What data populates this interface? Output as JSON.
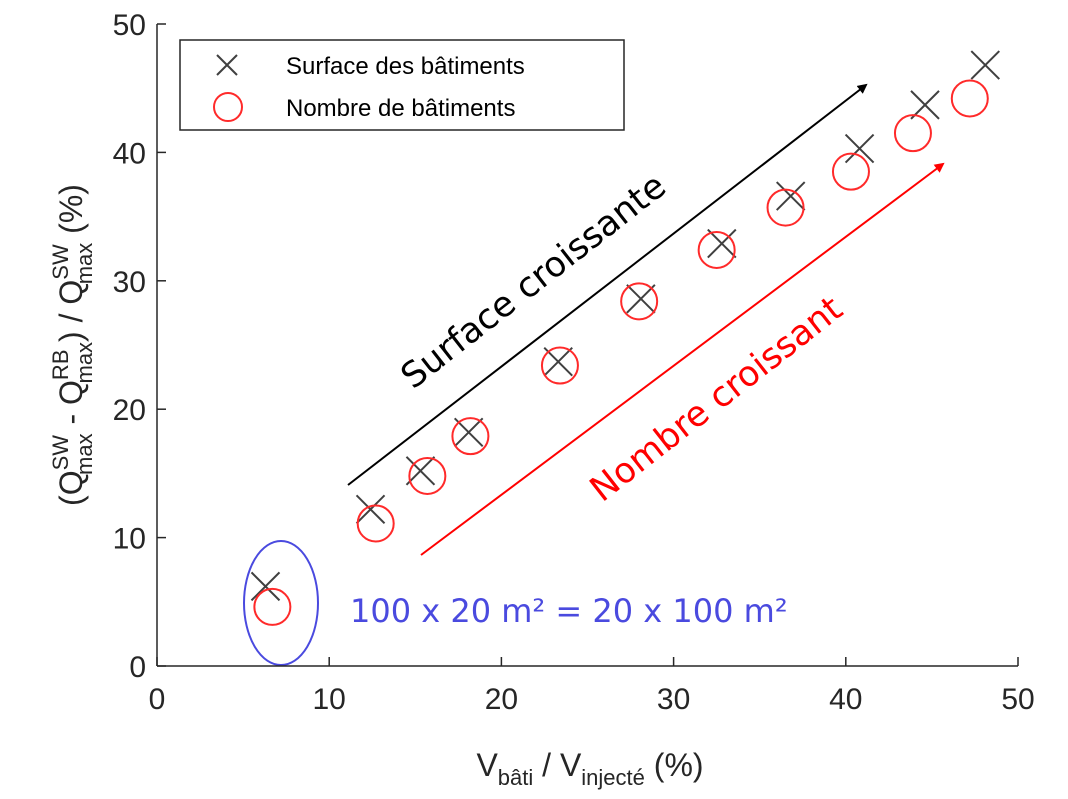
{
  "chart_data": {
    "type": "scatter",
    "xlim": [
      0,
      50
    ],
    "ylim": [
      0,
      50
    ],
    "xticks": [
      "0",
      "10",
      "20",
      "30",
      "40",
      "50"
    ],
    "yticks": [
      "0",
      "10",
      "20",
      "30",
      "40",
      "50"
    ],
    "grid": false,
    "legend_position": "top-left",
    "xlabel": {
      "base1": "V",
      "sub1": "bâti",
      "mid": " / V",
      "sub2": "injecté",
      "tail": " (%)"
    },
    "ylabel": {
      "p1": "(Q",
      "sup1": "SW",
      "sub1": "max",
      "p2": " - Q",
      "sup2": "RB",
      "sub2": "max",
      "p3": ") / Q",
      "sup3": "SW",
      "sub3": "max",
      "p4": " (%)"
    },
    "series": [
      {
        "name": "Surface des bâtiments",
        "marker": "x",
        "color": "#404040",
        "x": [
          6.3,
          12.4,
          15.3,
          18.1,
          23.3,
          28.1,
          32.8,
          36.8,
          40.8,
          44.6,
          48.1
        ],
        "y": [
          6.2,
          12.2,
          15.2,
          18.2,
          23.7,
          28.6,
          32.9,
          36.6,
          40.3,
          43.7,
          46.8
        ]
      },
      {
        "name": "Nombre de bâtiments",
        "marker": "o",
        "color": "#ff2a2a",
        "x": [
          6.7,
          12.7,
          15.7,
          18.2,
          23.4,
          28.0,
          32.5,
          36.5,
          40.3,
          43.9,
          47.2
        ],
        "y": [
          4.6,
          11.1,
          14.8,
          17.9,
          23.4,
          28.4,
          32.4,
          35.7,
          38.5,
          41.5,
          44.2
        ]
      }
    ],
    "annotations": {
      "surface": {
        "text": "Surface croissante",
        "color": "#000000"
      },
      "nombre": {
        "text": "Nombre croissant",
        "color": "#ff0000"
      },
      "equality": {
        "text": "100 x 20 m² = 20 x 100 m²",
        "color": "#4a4adf"
      }
    }
  }
}
